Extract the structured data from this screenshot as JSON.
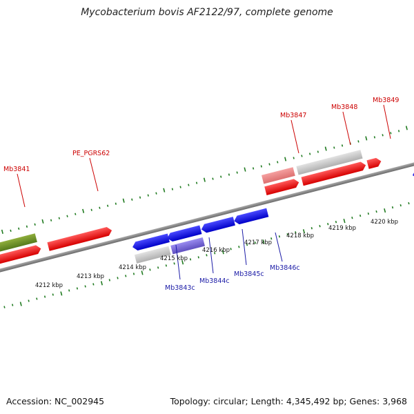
{
  "title": "Mycobacterium bovis AF2122/97, complete genome",
  "footer": {
    "accession": "Accession: NC_002945",
    "summary": "Topology: circular; Length: 4,345,492 bp; Genes: 3,968"
  },
  "scale_labels": [
    "4212 kbp",
    "4213 kbp",
    "4214 kbp",
    "4215 kbp",
    "4216 kbp",
    "4217 kbp",
    "4218 kbp",
    "4219 kbp",
    "4220 kbp"
  ],
  "gene_labels_top": [
    "Mb3841",
    "PE_PGRS62",
    "Mb3847",
    "Mb3848",
    "Mb3849"
  ],
  "gene_labels_bottom": [
    "Mb3843c",
    "Mb3844c",
    "Mb3845c",
    "Mb3846c"
  ],
  "colors": {
    "backbone": "#8a8a8a",
    "tick": "#1f7a1f",
    "forward_cds": "#ee1111",
    "reverse_cds": "#1a1aee",
    "gene_forward": "#cccccc",
    "gene_pseudo_pink": "#ee8888",
    "olive": "#6b8e23",
    "purple": "#7766cc",
    "label_red": "#cc0000",
    "label_blue": "#1a1aa6"
  }
}
